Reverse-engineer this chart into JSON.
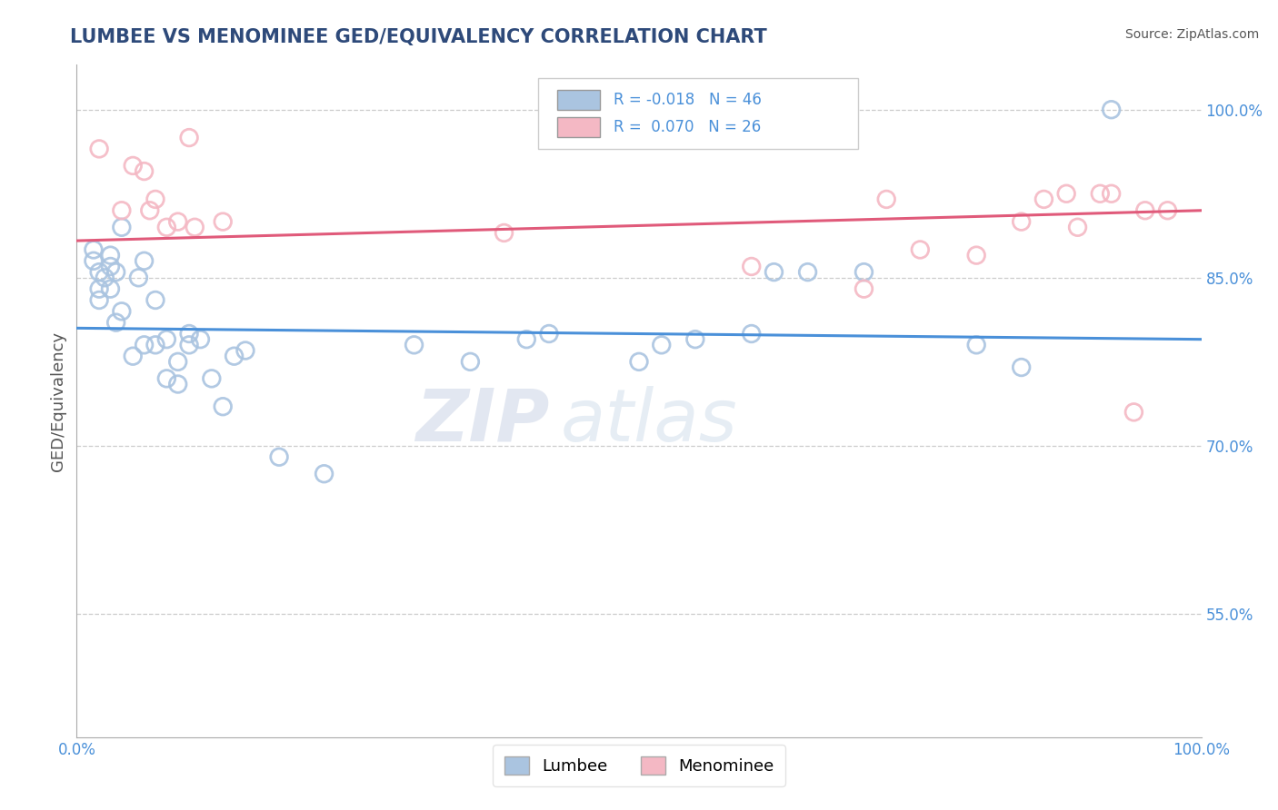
{
  "title": "LUMBEE VS MENOMINEE GED/EQUIVALENCY CORRELATION CHART",
  "source": "Source: ZipAtlas.com",
  "ylabel": "GED/Equivalency",
  "xlabel": "",
  "xlim": [
    0.0,
    1.0
  ],
  "ylim": [
    0.44,
    1.04
  ],
  "xticks": [
    0.0,
    0.2,
    0.4,
    0.6,
    0.8,
    1.0
  ],
  "xticklabels": [
    "0.0%",
    "",
    "",
    "",
    "",
    "100.0%"
  ],
  "ytick_positions": [
    0.55,
    0.7,
    0.85,
    1.0
  ],
  "ytick_labels": [
    "55.0%",
    "70.0%",
    "85.0%",
    "100.0%"
  ],
  "grid_color": "#cccccc",
  "background_color": "#ffffff",
  "lumbee_color": "#aac4e0",
  "menominee_color": "#f4b8c4",
  "lumbee_line_color": "#4a90d9",
  "menominee_line_color": "#e05a7a",
  "lumbee_R": -0.018,
  "lumbee_N": 46,
  "menominee_R": 0.07,
  "menominee_N": 26,
  "watermark_zip": "ZIP",
  "watermark_atlas": "atlas",
  "title_color": "#2e4a7a",
  "title_fontsize": 15,
  "legend_label_blue": "Lumbee",
  "legend_label_pink": "Menominee",
  "lumbee_x": [
    0.015,
    0.015,
    0.02,
    0.02,
    0.02,
    0.025,
    0.03,
    0.03,
    0.03,
    0.035,
    0.035,
    0.04,
    0.04,
    0.05,
    0.055,
    0.06,
    0.06,
    0.07,
    0.07,
    0.08,
    0.08,
    0.09,
    0.09,
    0.1,
    0.1,
    0.11,
    0.12,
    0.13,
    0.14,
    0.15,
    0.18,
    0.22,
    0.3,
    0.35,
    0.4,
    0.42,
    0.5,
    0.52,
    0.55,
    0.6,
    0.62,
    0.65,
    0.7,
    0.8,
    0.84,
    0.92
  ],
  "lumbee_y": [
    0.875,
    0.865,
    0.855,
    0.84,
    0.83,
    0.85,
    0.87,
    0.86,
    0.84,
    0.855,
    0.81,
    0.895,
    0.82,
    0.78,
    0.85,
    0.865,
    0.79,
    0.79,
    0.83,
    0.795,
    0.76,
    0.775,
    0.755,
    0.8,
    0.79,
    0.795,
    0.76,
    0.735,
    0.78,
    0.785,
    0.69,
    0.675,
    0.79,
    0.775,
    0.795,
    0.8,
    0.775,
    0.79,
    0.795,
    0.8,
    0.855,
    0.855,
    0.855,
    0.79,
    0.77,
    1.0
  ],
  "menominee_x": [
    0.02,
    0.04,
    0.05,
    0.06,
    0.065,
    0.07,
    0.08,
    0.09,
    0.1,
    0.105,
    0.13,
    0.38,
    0.6,
    0.7,
    0.72,
    0.75,
    0.8,
    0.84,
    0.86,
    0.88,
    0.89,
    0.91,
    0.92,
    0.94,
    0.95,
    0.97
  ],
  "menominee_y": [
    0.965,
    0.91,
    0.95,
    0.945,
    0.91,
    0.92,
    0.895,
    0.9,
    0.975,
    0.895,
    0.9,
    0.89,
    0.86,
    0.84,
    0.92,
    0.875,
    0.87,
    0.9,
    0.92,
    0.925,
    0.895,
    0.925,
    0.925,
    0.73,
    0.91,
    0.91
  ],
  "lumbee_line_y0": 0.805,
  "lumbee_line_y1": 0.795,
  "menominee_line_y0": 0.883,
  "menominee_line_y1": 0.91
}
